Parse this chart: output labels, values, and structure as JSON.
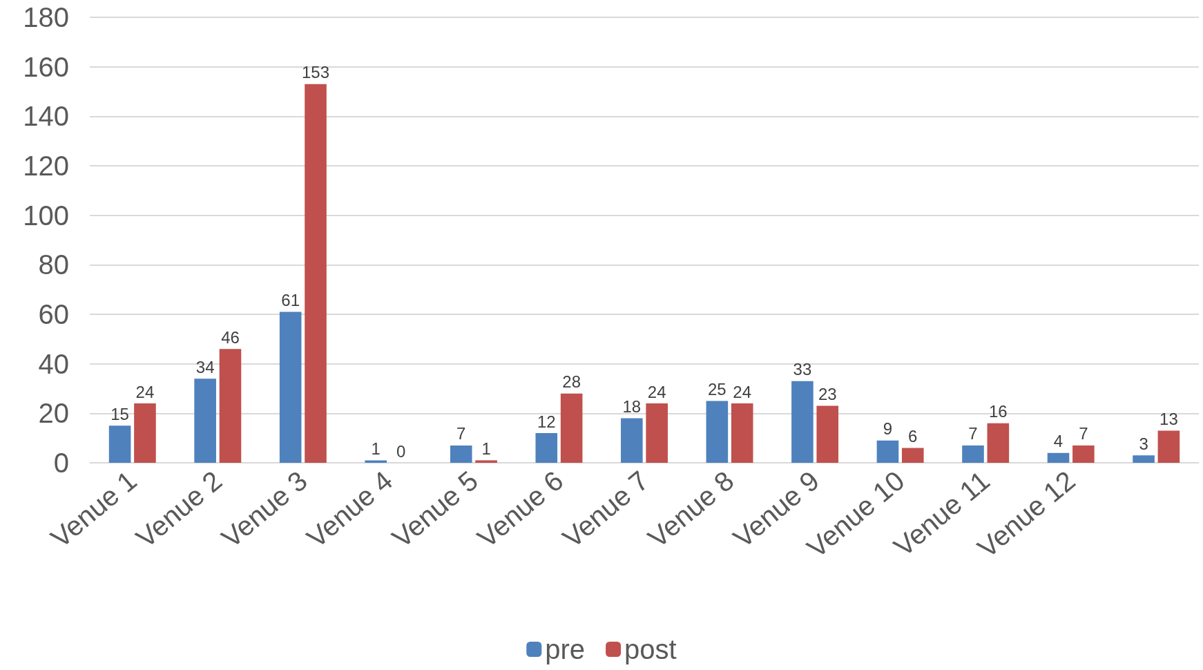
{
  "chart_data": {
    "type": "bar",
    "categories": [
      "Venue 1",
      "Venue 2",
      "Venue 3",
      "Venue 4",
      "Venue 5",
      "Venue 6",
      "Venue 7",
      "Venue 8",
      "Venue 9",
      "Venue 10",
      "Venue 11",
      "Venue 12",
      null
    ],
    "series": [
      {
        "name": "pre",
        "color": "#4f81bd",
        "values": [
          15,
          34,
          61,
          1,
          7,
          12,
          18,
          25,
          33,
          9,
          7,
          4,
          3
        ]
      },
      {
        "name": "post",
        "color": "#c0504d",
        "values": [
          24,
          46,
          153,
          0,
          1,
          28,
          24,
          24,
          23,
          6,
          16,
          7,
          13
        ]
      }
    ],
    "ylim": [
      0,
      180
    ],
    "yticks": [
      0,
      20,
      40,
      60,
      80,
      100,
      120,
      140,
      160,
      180
    ],
    "grid": "y",
    "legend": "bottom",
    "data_labels": true
  }
}
